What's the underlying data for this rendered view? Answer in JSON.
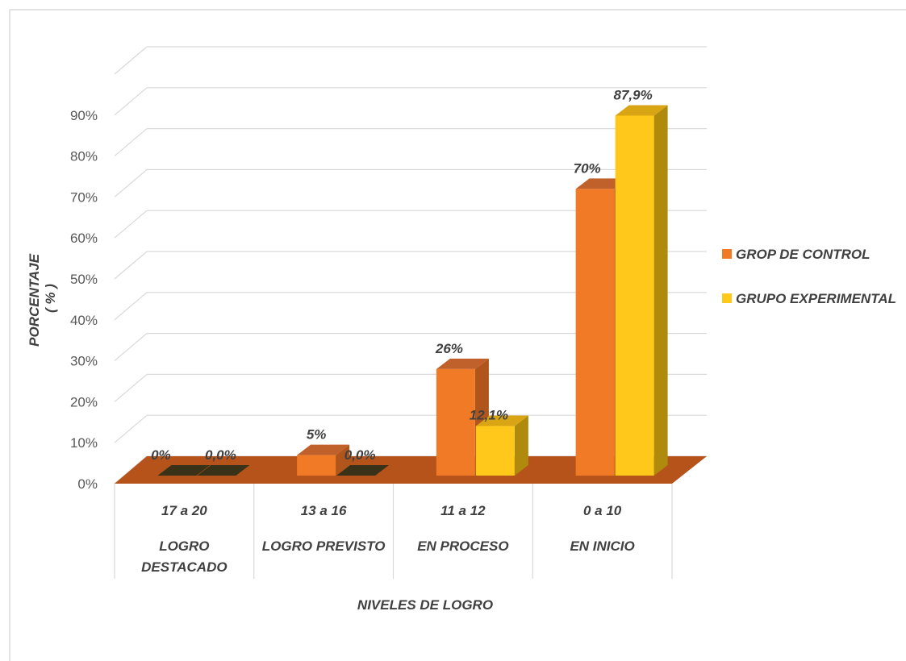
{
  "chart_data": {
    "type": "bar",
    "style": "3d-clustered-column",
    "categories": [
      {
        "range": "17 a 20",
        "level": [
          "LOGRO",
          "DESTACADO"
        ]
      },
      {
        "range": "13 a 16",
        "level": [
          "LOGRO PREVISTO"
        ]
      },
      {
        "range": "11 a 12",
        "level": [
          "EN PROCESO"
        ]
      },
      {
        "range": "0 a 10",
        "level": [
          "EN INICIO"
        ]
      }
    ],
    "series": [
      {
        "name": "GROP DE CONTROL",
        "values": [
          0,
          5,
          26,
          70
        ],
        "labels": [
          "0%",
          "5%",
          "26%",
          "70%"
        ],
        "color": "#f07a26",
        "top": "#c0602a",
        "side": "#b0561d"
      },
      {
        "name": "GRUPO EXPERIMENTAL",
        "values": [
          0,
          0,
          12.1,
          87.9
        ],
        "labels": [
          "0,0%",
          "0,0%",
          "12,1%",
          "87,9%"
        ],
        "color": "#ffc81a",
        "top": "#d9a514",
        "side": "#b08a0c"
      }
    ],
    "yticks": [
      "0%",
      "10%",
      "20%",
      "30%",
      "40%",
      "50%",
      "60%",
      "70%",
      "80%",
      "90%"
    ],
    "ylim": [
      0,
      90
    ],
    "ylabel": [
      "PORCENTAJE",
      "( % )"
    ],
    "xlabel": "NIVELES DE LOGRO",
    "floor_color": "#b5531a",
    "grid": true,
    "legend_position": "right"
  }
}
